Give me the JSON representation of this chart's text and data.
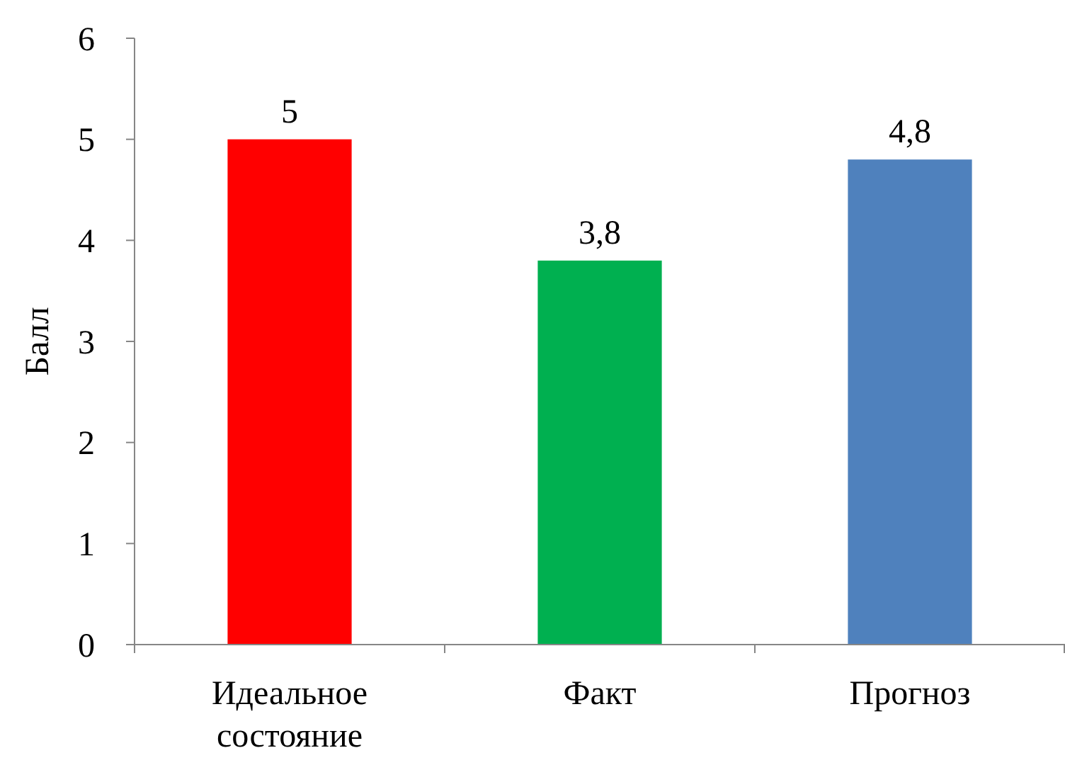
{
  "chart_data": {
    "type": "bar",
    "ylabel": "Балл",
    "categories": [
      "Идеальное состояние",
      "Факт",
      "Прогноз"
    ],
    "values": [
      5,
      3.8,
      4.8
    ],
    "colors": [
      "#ff0000",
      "#00b050",
      "#4f81bd"
    ],
    "value_labels": [
      "5",
      "3,8",
      "4,8"
    ],
    "ylim": [
      0,
      6
    ],
    "yticks": [
      0,
      1,
      2,
      3,
      4,
      5,
      6
    ],
    "grid": false
  }
}
